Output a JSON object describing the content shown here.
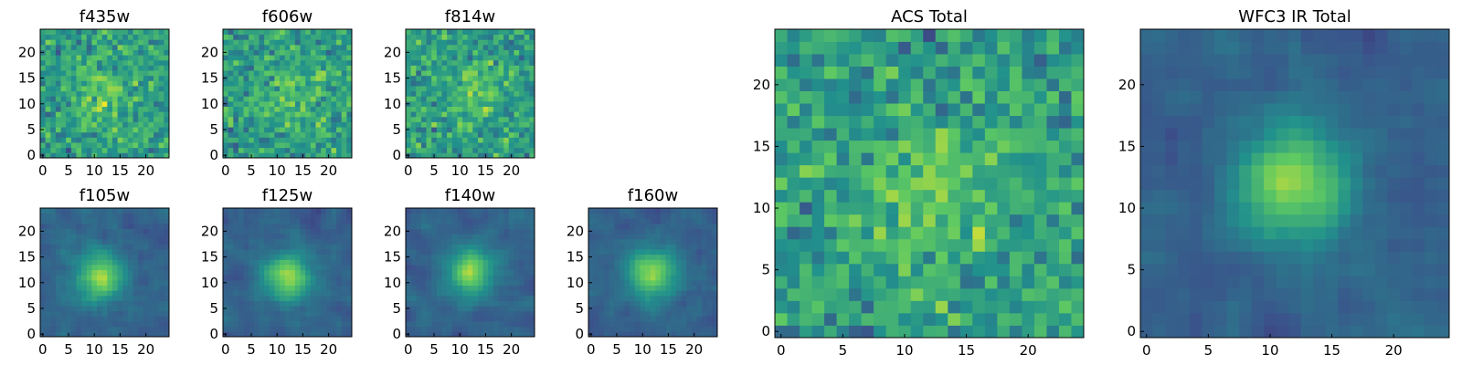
{
  "chart_data": [
    {
      "type": "heatmap",
      "title": "f435w",
      "size": 25,
      "pattern": "noise",
      "seed": 11,
      "peak": [
        12,
        12
      ],
      "xticks": [
        0,
        5,
        10,
        15,
        20
      ],
      "yticks": [
        0,
        5,
        10,
        15,
        20
      ],
      "xlim": [
        0,
        24
      ],
      "ylim": [
        0,
        24
      ]
    },
    {
      "type": "heatmap",
      "title": "f606w",
      "size": 25,
      "pattern": "noise",
      "seed": 23,
      "peak": [
        13,
        12
      ],
      "xticks": [
        0,
        5,
        10,
        15,
        20
      ],
      "yticks": [
        0,
        5,
        10,
        15,
        20
      ],
      "xlim": [
        0,
        24
      ],
      "ylim": [
        0,
        24
      ]
    },
    {
      "type": "heatmap",
      "title": "f814w",
      "size": 25,
      "pattern": "noise",
      "seed": 37,
      "peak": [
        14,
        13
      ],
      "xticks": [
        0,
        5,
        10,
        15,
        20
      ],
      "yticks": [
        0,
        5,
        10,
        15,
        20
      ],
      "xlim": [
        0,
        24
      ],
      "ylim": [
        0,
        24
      ]
    },
    {
      "type": "heatmap",
      "title": "f105w",
      "size": 25,
      "pattern": "source",
      "seed": 41,
      "peak": [
        11,
        11
      ],
      "xticks": [
        0,
        5,
        10,
        15,
        20
      ],
      "yticks": [
        0,
        5,
        10,
        15,
        20
      ],
      "xlim": [
        0,
        24
      ],
      "ylim": [
        0,
        24
      ]
    },
    {
      "type": "heatmap",
      "title": "f125w",
      "size": 25,
      "pattern": "source",
      "seed": 53,
      "peak": [
        12,
        11
      ],
      "xticks": [
        0,
        5,
        10,
        15,
        20
      ],
      "yticks": [
        0,
        5,
        10,
        15,
        20
      ],
      "xlim": [
        0,
        24
      ],
      "ylim": [
        0,
        24
      ]
    },
    {
      "type": "heatmap",
      "title": "f140w",
      "size": 25,
      "pattern": "source",
      "seed": 67,
      "peak": [
        12,
        12
      ],
      "xticks": [
        0,
        5,
        10,
        15,
        20
      ],
      "yticks": [
        0,
        5,
        10,
        15,
        20
      ],
      "xlim": [
        0,
        24
      ],
      "ylim": [
        0,
        24
      ]
    },
    {
      "type": "heatmap",
      "title": "f160w",
      "size": 25,
      "pattern": "source",
      "seed": 79,
      "peak": [
        12,
        12
      ],
      "xticks": [
        0,
        5,
        10,
        15,
        20
      ],
      "yticks": [
        0,
        5,
        10,
        15,
        20
      ],
      "xlim": [
        0,
        24
      ],
      "ylim": [
        0,
        24
      ]
    },
    {
      "type": "heatmap",
      "title": "ACS Total",
      "size": 25,
      "pattern": "noise",
      "seed": 97,
      "peak": [
        12,
        11
      ],
      "xticks": [
        0,
        5,
        10,
        15,
        20
      ],
      "yticks": [
        0,
        5,
        10,
        15,
        20
      ],
      "xlim": [
        0,
        24
      ],
      "ylim": [
        0,
        24
      ]
    },
    {
      "type": "heatmap",
      "title": "WFC3 IR Total",
      "size": 25,
      "pattern": "source",
      "seed": 101,
      "peak": [
        12,
        12
      ],
      "xticks": [
        0,
        5,
        10,
        15,
        20
      ],
      "yticks": [
        0,
        5,
        10,
        15,
        20
      ],
      "xlim": [
        0,
        24
      ],
      "ylim": [
        0,
        24
      ]
    }
  ],
  "colormap": [
    "#440154",
    "#3b528b",
    "#21918c",
    "#5ec962",
    "#fde725"
  ]
}
